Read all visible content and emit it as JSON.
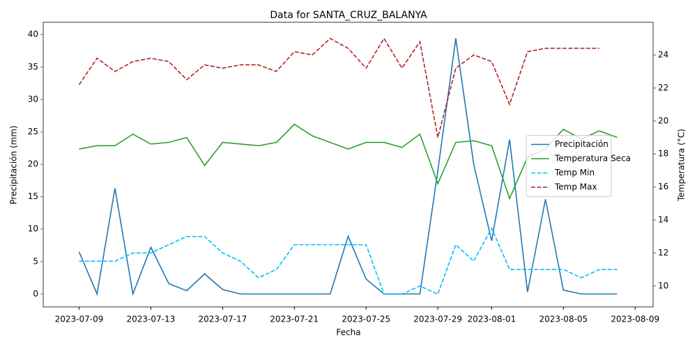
{
  "chart_data": {
    "type": "line",
    "title": "Data for SANTA_CRUZ_BALANYA",
    "x_label": "Fecha",
    "y_label": "Precipitación (mm)",
    "y2_label": "Temperatura (°C)",
    "x": [
      "2023-07-09",
      "2023-07-10",
      "2023-07-11",
      "2023-07-12",
      "2023-07-13",
      "2023-07-14",
      "2023-07-15",
      "2023-07-16",
      "2023-07-17",
      "2023-07-18",
      "2023-07-19",
      "2023-07-20",
      "2023-07-21",
      "2023-07-22",
      "2023-07-23",
      "2023-07-24",
      "2023-07-25",
      "2023-07-26",
      "2023-07-27",
      "2023-07-28",
      "2023-07-29",
      "2023-07-30",
      "2023-07-31",
      "2023-08-01",
      "2023-08-02",
      "2023-08-03",
      "2023-08-04",
      "2023-08-05",
      "2023-08-06",
      "2023-08-07",
      "2023-08-08"
    ],
    "xlim": [
      "2023-07-07",
      "2023-08-10"
    ],
    "xticks": [
      "2023-07-09",
      "2023-07-13",
      "2023-07-17",
      "2023-07-21",
      "2023-07-25",
      "2023-07-29",
      "2023-08-01",
      "2023-08-05",
      "2023-08-09"
    ],
    "ylim": [
      -2,
      41.9
    ],
    "yticks": [
      0,
      5,
      10,
      15,
      20,
      25,
      30,
      35,
      40
    ],
    "y2lim": [
      8.73,
      25.98
    ],
    "y2ticks": [
      10,
      12,
      14,
      16,
      18,
      20,
      22,
      24
    ],
    "y_label_color": "#1f77b4",
    "y2_label_color": "#d62728",
    "legend": "center right",
    "series": [
      {
        "name": "Precipitación",
        "color": "#1f77b4",
        "dashed": false,
        "axis": "y",
        "values": [
          6.5,
          0,
          16.3,
          0,
          7.2,
          1.6,
          0.5,
          3.1,
          0.7,
          0,
          0,
          0,
          0,
          0,
          0,
          8.9,
          2.3,
          0,
          0,
          0,
          19,
          39.4,
          20,
          8.2,
          23.8,
          0.3,
          14.6,
          0.6,
          0,
          0,
          0
        ]
      },
      {
        "name": "Temperatura Seca",
        "color": "#2ca02c",
        "dashed": false,
        "axis": "y2",
        "values": [
          18.3,
          18.5,
          18.5,
          19.2,
          18.6,
          18.7,
          19.0,
          17.3,
          18.7,
          18.6,
          18.5,
          18.7,
          19.8,
          19.1,
          18.7,
          18.3,
          18.7,
          18.7,
          18.4,
          19.2,
          16.2,
          18.7,
          18.8,
          18.5,
          15.3,
          17.8,
          18.3,
          19.5,
          18.9,
          19.4,
          19.0
        ]
      },
      {
        "name": "Temp Min",
        "color": "#00bfff",
        "dashed": true,
        "axis": "y2",
        "values": [
          11.5,
          11.5,
          11.5,
          12.0,
          12.0,
          12.5,
          13.0,
          13.0,
          12.0,
          11.5,
          10.5,
          11.0,
          12.5,
          12.5,
          12.5,
          12.5,
          12.5,
          9.5,
          9.5,
          10.0,
          9.5,
          12.5,
          11.5,
          13.5,
          11.0,
          11.0,
          11.0,
          11.0,
          10.5,
          11.0,
          11.0
        ]
      },
      {
        "name": "Temp Max",
        "color": "#b22222",
        "dashed": true,
        "axis": "y2",
        "values": [
          22.2,
          23.8,
          23.0,
          23.6,
          23.8,
          23.6,
          22.5,
          23.4,
          23.2,
          23.4,
          23.4,
          23.0,
          24.2,
          24.0,
          25.0,
          24.4,
          23.2,
          25.0,
          23.2,
          24.8,
          19.0,
          23.2,
          24.0,
          23.6,
          21.0,
          24.2,
          24.4,
          24.4,
          24.4,
          24.4,
          null
        ]
      }
    ]
  }
}
